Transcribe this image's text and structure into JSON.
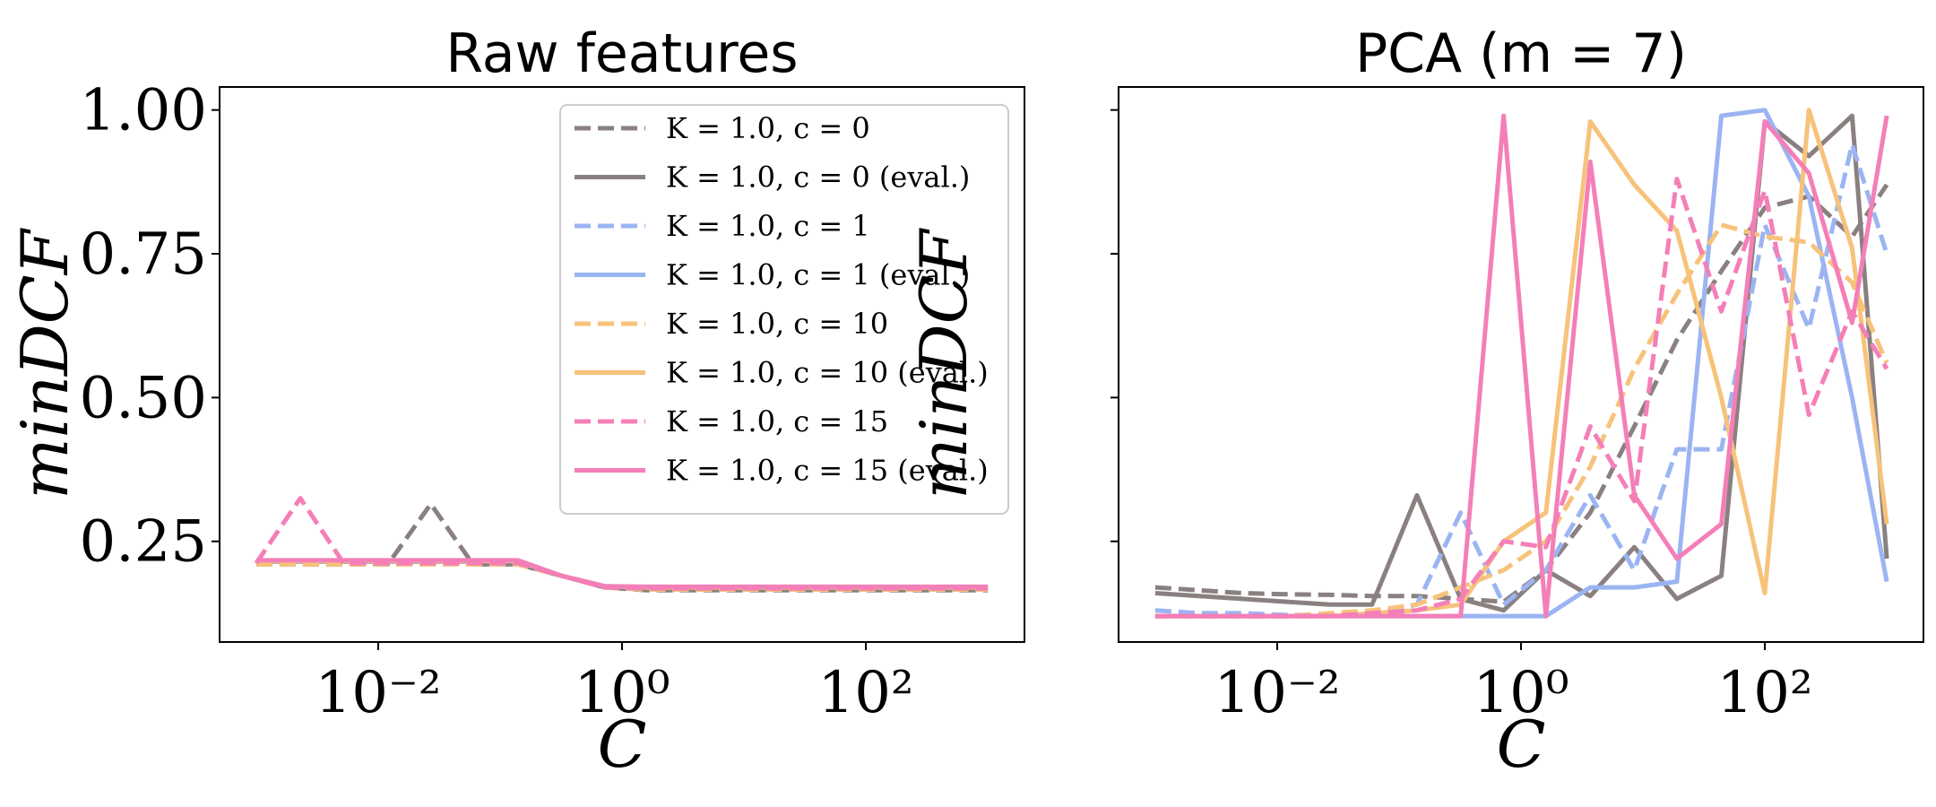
{
  "chart_data": [
    {
      "type": "line",
      "title": "Raw features",
      "xlabel": "C",
      "ylabel": "minDCF",
      "xscale": "log",
      "xlim": [
        0.0005,
        2000
      ],
      "ylim": [
        0.075,
        1.04
      ],
      "xticks": [
        0.01,
        1,
        100
      ],
      "xtick_labels": [
        "10^-2",
        "10^0",
        "10^2"
      ],
      "yticks": [
        0.25,
        0.5,
        0.75,
        1.0
      ],
      "ytick_labels": [
        "0.25",
        "0.50",
        "0.75",
        "1.00"
      ],
      "legend": "upper-right",
      "x": [
        0.001,
        0.0023,
        0.0052,
        0.012,
        0.027,
        0.06,
        0.14,
        0.32,
        0.72,
        1.6,
        3.7,
        8.5,
        19,
        44,
        100,
        230,
        520,
        1000
      ],
      "series": [
        {
          "name": "K = 1.0, c = 0",
          "color": "#8a8080",
          "dash": true,
          "values": [
            0.21,
            0.21,
            0.21,
            0.21,
            0.315,
            0.21,
            0.21,
            0.19,
            0.17,
            0.165,
            0.165,
            0.165,
            0.165,
            0.165,
            0.165,
            0.165,
            0.165,
            0.165
          ]
        },
        {
          "name": "K = 1.0, c = 0 (eval.)",
          "color": "#8a8080",
          "dash": false,
          "values": [
            0.215,
            0.215,
            0.215,
            0.215,
            0.215,
            0.215,
            0.215,
            0.19,
            0.172,
            0.17,
            0.17,
            0.17,
            0.17,
            0.17,
            0.17,
            0.17,
            0.17,
            0.17
          ]
        },
        {
          "name": "K = 1.0, c = 1",
          "color": "#9bb4f2",
          "dash": true,
          "values": [
            0.212,
            0.212,
            0.212,
            0.212,
            0.212,
            0.212,
            0.212,
            0.19,
            0.17,
            0.167,
            0.167,
            0.167,
            0.167,
            0.167,
            0.167,
            0.167,
            0.167,
            0.167
          ]
        },
        {
          "name": "K = 1.0, c = 1 (eval.)",
          "color": "#9bb4f2",
          "dash": false,
          "values": [
            0.216,
            0.216,
            0.216,
            0.216,
            0.216,
            0.216,
            0.216,
            0.19,
            0.172,
            0.17,
            0.17,
            0.17,
            0.17,
            0.17,
            0.17,
            0.17,
            0.17,
            0.17
          ]
        },
        {
          "name": "K = 1.0, c = 10",
          "color": "#f7c27a",
          "dash": true,
          "values": [
            0.21,
            0.21,
            0.21,
            0.21,
            0.21,
            0.21,
            0.21,
            0.19,
            0.17,
            0.166,
            0.166,
            0.166,
            0.166,
            0.166,
            0.166,
            0.166,
            0.166,
            0.166
          ]
        },
        {
          "name": "K = 1.0, c = 10 (eval.)",
          "color": "#f7c27a",
          "dash": false,
          "values": [
            0.216,
            0.216,
            0.216,
            0.216,
            0.216,
            0.216,
            0.216,
            0.19,
            0.172,
            0.17,
            0.17,
            0.17,
            0.17,
            0.17,
            0.17,
            0.17,
            0.17,
            0.17
          ]
        },
        {
          "name": "K = 1.0, c = 15",
          "color": "#f47fb8",
          "dash": true,
          "values": [
            0.212,
            0.325,
            0.212,
            0.212,
            0.212,
            0.212,
            0.212,
            0.19,
            0.17,
            0.168,
            0.168,
            0.168,
            0.168,
            0.168,
            0.168,
            0.168,
            0.168,
            0.168
          ]
        },
        {
          "name": "K = 1.0, c = 15 (eval.)",
          "color": "#f47fb8",
          "dash": false,
          "values": [
            0.217,
            0.217,
            0.217,
            0.217,
            0.217,
            0.217,
            0.217,
            0.19,
            0.172,
            0.171,
            0.171,
            0.171,
            0.171,
            0.171,
            0.171,
            0.171,
            0.171,
            0.171
          ]
        }
      ]
    },
    {
      "type": "line",
      "title": "PCA (m = 7)",
      "xlabel": "C",
      "ylabel": "minDCF",
      "xscale": "log",
      "xlim": [
        0.0005,
        2000
      ],
      "ylim": [
        0.075,
        1.04
      ],
      "xticks": [
        0.01,
        1,
        100
      ],
      "xtick_labels": [
        "10^-2",
        "10^0",
        "10^2"
      ],
      "yticks": [
        0.25,
        0.5,
        0.75,
        1.0
      ],
      "ytick_labels": [
        "",
        "",
        "",
        ""
      ],
      "x": [
        0.001,
        0.0023,
        0.0052,
        0.012,
        0.027,
        0.06,
        0.14,
        0.32,
        0.72,
        1.6,
        3.7,
        8.5,
        19,
        44,
        100,
        230,
        520,
        1000
      ],
      "series": [
        {
          "name": "K = 1.0, c = 0",
          "color": "#8a8080",
          "dash": true,
          "values": [
            0.17,
            0.165,
            0.16,
            0.158,
            0.157,
            0.155,
            0.155,
            0.15,
            0.145,
            0.2,
            0.3,
            0.45,
            0.6,
            0.72,
            0.83,
            0.85,
            0.78,
            0.87
          ]
        },
        {
          "name": "K = 1.0, c = 0 (eval.)",
          "color": "#8a8080",
          "dash": false,
          "values": [
            0.16,
            0.155,
            0.15,
            0.145,
            0.14,
            0.14,
            0.33,
            0.15,
            0.13,
            0.2,
            0.155,
            0.24,
            0.15,
            0.19,
            0.98,
            0.92,
            0.99,
            0.22
          ]
        },
        {
          "name": "K = 1.0, c = 1",
          "color": "#9bb4f2",
          "dash": true,
          "values": [
            0.13,
            0.125,
            0.125,
            0.122,
            0.122,
            0.125,
            0.14,
            0.3,
            0.14,
            0.2,
            0.33,
            0.2,
            0.41,
            0.41,
            0.8,
            0.62,
            0.94,
            0.75
          ]
        },
        {
          "name": "K = 1.0, c = 1 (eval.)",
          "color": "#9bb4f2",
          "dash": false,
          "values": [
            0.12,
            0.12,
            0.12,
            0.12,
            0.12,
            0.12,
            0.12,
            0.12,
            0.12,
            0.12,
            0.17,
            0.17,
            0.18,
            0.99,
            1.0,
            0.85,
            0.5,
            0.18
          ]
        },
        {
          "name": "K = 1.0, c = 10",
          "color": "#f7c27a",
          "dash": true,
          "values": [
            0.12,
            0.12,
            0.12,
            0.12,
            0.125,
            0.13,
            0.14,
            0.17,
            0.2,
            0.25,
            0.38,
            0.55,
            0.68,
            0.8,
            0.78,
            0.77,
            0.7,
            0.56
          ]
        },
        {
          "name": "K = 1.0, c = 10 (eval.)",
          "color": "#f7c27a",
          "dash": false,
          "values": [
            0.12,
            0.12,
            0.12,
            0.12,
            0.12,
            0.125,
            0.13,
            0.14,
            0.25,
            0.3,
            0.98,
            0.87,
            0.79,
            0.5,
            0.16,
            1.0,
            0.76,
            0.28
          ]
        },
        {
          "name": "K = 1.0, c = 15",
          "color": "#f47fb8",
          "dash": true,
          "values": [
            0.12,
            0.12,
            0.12,
            0.12,
            0.12,
            0.125,
            0.13,
            0.15,
            0.25,
            0.24,
            0.45,
            0.32,
            0.88,
            0.65,
            0.86,
            0.47,
            0.65,
            0.55
          ]
        },
        {
          "name": "K = 1.0, c = 15 (eval.)",
          "color": "#f47fb8",
          "dash": false,
          "values": [
            0.12,
            0.12,
            0.12,
            0.12,
            0.12,
            0.12,
            0.12,
            0.12,
            0.99,
            0.12,
            0.91,
            0.33,
            0.22,
            0.28,
            0.98,
            0.89,
            0.63,
            0.99
          ]
        }
      ]
    }
  ]
}
